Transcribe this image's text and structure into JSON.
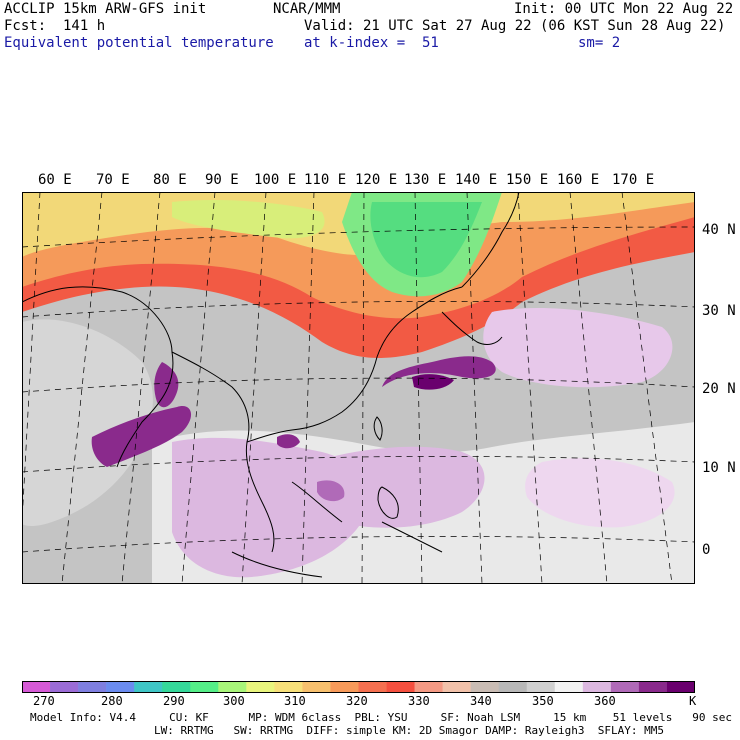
{
  "header": {
    "line1_left": "ACCLIP 15km ARW-GFS init",
    "line1_center": "NCAR/MMM",
    "line1_right": "Init: 00 UTC Mon 22 Aug 22",
    "line2_left": "Fcst:  141 h",
    "line2_right": "Valid: 21 UTC Sat 27 Aug 22 (06 KST Sun 28 Aug 22)",
    "line3_field": "Equivalent potential temperature",
    "line3_level": "at k-index =  51",
    "line3_smooth": "sm= 2"
  },
  "map": {
    "lon_labels": [
      "60 E",
      "70 E",
      "80 E",
      "90 E",
      "100 E",
      "110 E",
      "120 E",
      "130 E",
      "140 E",
      "150 E",
      "160 E",
      "170 E"
    ],
    "lat_labels": [
      "40 N",
      "30 N",
      "20 N",
      "10 N",
      "0"
    ]
  },
  "colorbar": {
    "colors": [
      "#d65ad6",
      "#9b6cd6",
      "#7f7fe0",
      "#6b8cf0",
      "#3fc6c6",
      "#35d89a",
      "#55ee88",
      "#a8f57a",
      "#e9f57e",
      "#f7e07a",
      "#f7c06e",
      "#f79a5a",
      "#f57050",
      "#f5503f",
      "#f49a84",
      "#f2c2aa",
      "#c9bcb4",
      "#b8b8b8",
      "#d0d0d0",
      "#f2f2f2",
      "#dcb8e0",
      "#b06ab8",
      "#8a2a8c",
      "#6a006e"
    ],
    "labels": [
      "270",
      "280",
      "290",
      "300",
      "310",
      "320",
      "330",
      "340",
      "350",
      "360"
    ],
    "unit": "K"
  },
  "footer": {
    "line1": "Model Info: V4.4     CU: KF      MP: WDM 6class  PBL: YSU     SF: Noah LSM     15 km    51 levels   90 sec",
    "line2": "LW: RRTMG   SW: RRTMG  DIFF: simple KM: 2D Smagor DAMP: Rayleigh3  SFLAY: MM5"
  }
}
